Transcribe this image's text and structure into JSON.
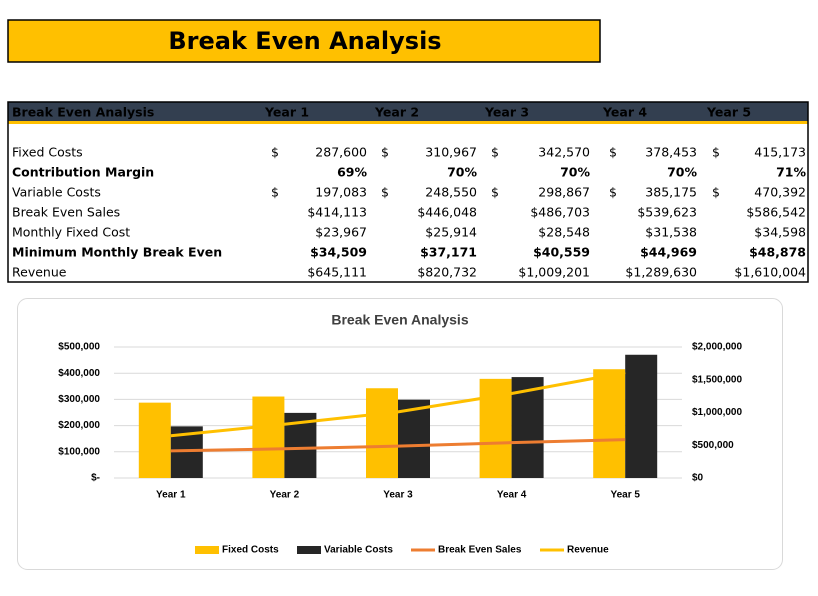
{
  "header": {
    "title": "Break Even Analysis"
  },
  "table": {
    "header": [
      "Break Even Analysis",
      "Year 1",
      "Year 2",
      "Year 3",
      "Year 4",
      "Year 5"
    ],
    "rows": [
      {
        "label": "Fixed Costs",
        "cells": [
          {
            "sign": "$",
            "value": "287,600"
          },
          {
            "sign": "$",
            "value": "310,967"
          },
          {
            "sign": "$",
            "value": "342,570"
          },
          {
            "sign": "$",
            "value": "378,453"
          },
          {
            "sign": "$",
            "value": "415,173"
          }
        ]
      },
      {
        "label": "Contribution Margin",
        "bold": true,
        "cells": [
          "69%",
          "70%",
          "70%",
          "70%",
          "71%"
        ]
      },
      {
        "label": "Variable Costs",
        "cells": [
          {
            "sign": "$",
            "value": "197,083"
          },
          {
            "sign": "$",
            "value": "248,550"
          },
          {
            "sign": "$",
            "value": "298,867"
          },
          {
            "sign": "$",
            "value": "385,175"
          },
          {
            "sign": "$",
            "value": "470,392"
          }
        ]
      },
      {
        "label": "Break Even Sales",
        "cells": [
          "$414,113",
          "$446,048",
          "$486,703",
          "$539,623",
          "$586,542"
        ]
      },
      {
        "label": "Monthly Fixed Cost",
        "cells": [
          "$23,967",
          "$25,914",
          "$28,548",
          "$31,538",
          "$34,598"
        ]
      },
      {
        "label": "Minimum Monthly Break Even",
        "bold": true,
        "cells": [
          "$34,509",
          "$37,171",
          "$40,559",
          "$44,969",
          "$48,878"
        ]
      },
      {
        "label": "Revenue",
        "cells": [
          "$645,111",
          "$820,732",
          "$1,009,201",
          "$1,289,630",
          "$1,610,004"
        ]
      }
    ]
  },
  "chart_data": {
    "type": "bar",
    "title": "Break Even Analysis",
    "categories": [
      "Year 1",
      "Year 2",
      "Year 3",
      "Year 4",
      "Year 5"
    ],
    "series": [
      {
        "name": "Fixed Costs",
        "type": "bar",
        "color": "#FFC000",
        "values": [
          287600,
          310967,
          342570,
          378453,
          415173
        ]
      },
      {
        "name": "Variable Costs",
        "type": "bar",
        "color": "#262626",
        "values": [
          197083,
          248550,
          298867,
          385175,
          470392
        ]
      },
      {
        "name": "Break Even Sales",
        "type": "line",
        "axis": "y2",
        "color": "#ED7D31",
        "values": [
          414113,
          446048,
          486703,
          539623,
          586542
        ]
      },
      {
        "name": "Revenue",
        "type": "line",
        "axis": "y2",
        "color": "#FFC000",
        "values": [
          645111,
          820732,
          1009201,
          1289630,
          1610004
        ]
      }
    ],
    "ylim": [
      0,
      500000
    ],
    "yticks": [
      {
        "value": 0,
        "label": "$-"
      },
      {
        "value": 100000,
        "label": "$100,000"
      },
      {
        "value": 200000,
        "label": "$200,000"
      },
      {
        "value": 300000,
        "label": "$300,000"
      },
      {
        "value": 400000,
        "label": "$400,000"
      },
      {
        "value": 500000,
        "label": "$500,000"
      }
    ],
    "y2lim": [
      0,
      2000000
    ],
    "y2ticks": [
      {
        "value": 0,
        "label": "$0"
      },
      {
        "value": 500000,
        "label": "$500,000"
      },
      {
        "value": 1000000,
        "label": "$1,000,000"
      },
      {
        "value": 1500000,
        "label": "$1,500,000"
      },
      {
        "value": 2000000,
        "label": "$2,000,000"
      }
    ],
    "grid": true,
    "legend": "bottom"
  }
}
